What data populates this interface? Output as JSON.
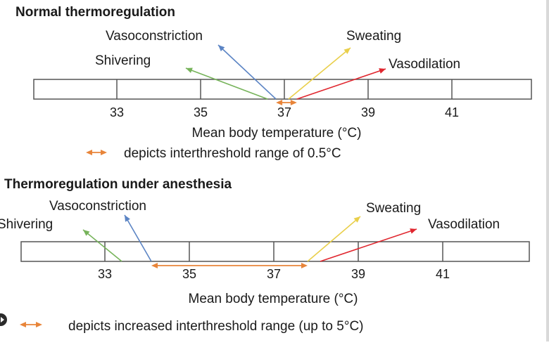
{
  "colors": {
    "green": "#76b35a",
    "blue": "#5b84c4",
    "yellow": "#e9cf4b",
    "red": "#e0272f",
    "orange": "#e8853a",
    "line": "#555555",
    "text": "#1a1a1a"
  },
  "panels": [
    {
      "title": "Normal thermoregulation",
      "ticks": [
        {
          "label": "33",
          "value": 33
        },
        {
          "label": "35",
          "value": 35
        },
        {
          "label": "37",
          "value": 37
        },
        {
          "label": "39",
          "value": 39
        },
        {
          "label": "41",
          "value": 41
        }
      ],
      "axis_label": "Mean body temperature (°C)",
      "responses": [
        {
          "label": "Shivering",
          "color": "green",
          "threshold": 36.6
        },
        {
          "label": "Vasoconstriction",
          "color": "blue",
          "threshold": 36.8
        },
        {
          "label": "Sweating",
          "color": "yellow",
          "threshold": 37.1
        },
        {
          "label": "Vasodilation",
          "color": "red",
          "threshold": 37.3
        }
      ],
      "range": [
        36.8,
        37.3
      ],
      "legend": "depicts interthreshold range of 0.5°C"
    },
    {
      "title": "Thermoregulation under anesthesia",
      "ticks": [
        {
          "label": "33",
          "value": 33
        },
        {
          "label": "35",
          "value": 35
        },
        {
          "label": "37",
          "value": 37
        },
        {
          "label": "39",
          "value": 39
        },
        {
          "label": "41",
          "value": 41
        }
      ],
      "axis_label": "Mean body temperature (°C)",
      "responses": [
        {
          "label": "Shivering",
          "color": "green",
          "threshold": 33.4
        },
        {
          "label": "Vasoconstriction",
          "color": "blue",
          "threshold": 34.1
        },
        {
          "label": "Sweating",
          "color": "yellow",
          "threshold": 37.8
        },
        {
          "label": "Vasodilation",
          "color": "red",
          "threshold": 38.1
        }
      ],
      "range": [
        34.1,
        37.8
      ],
      "legend": "depicts increased interthreshold range (up to 5°C)"
    }
  ]
}
